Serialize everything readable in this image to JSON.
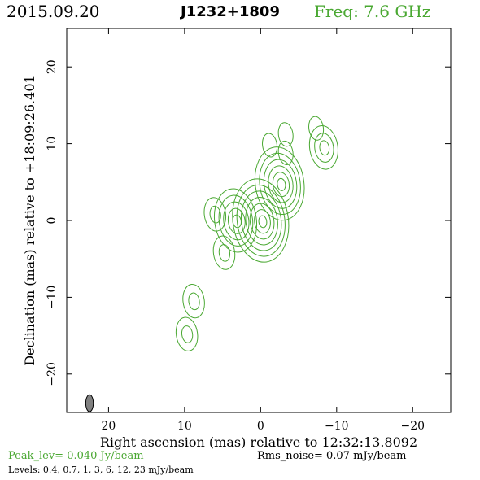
{
  "header": {
    "date": "2015.09.20",
    "source": "J1232+1809",
    "freq": "Freq:  7.6  GHz"
  },
  "footer": {
    "peak": "Peak_lev=  0.040 Jy/beam",
    "rms": "Rms_noise=  0.07  mJy/beam",
    "levels": "Levels: 0.4,  0.7,    1,    3,    6,   12,   23  mJy/beam"
  },
  "colors": {
    "contour": "#4aa832",
    "beam": "#808080",
    "axes": "#000000"
  },
  "chart_data": {
    "type": "contour",
    "xlabel": "Right ascension (mas) relative to 12:32:13.8092",
    "ylabel": "Declination (mas) relative to +18:09:26.401",
    "xlim": [
      25.5,
      -25
    ],
    "ylim": [
      -25,
      25
    ],
    "xticks": [
      20,
      10,
      0,
      -10,
      -20
    ],
    "xtick_labels": [
      "20",
      "10",
      "0",
      "−10",
      "−20"
    ],
    "yticks": [
      20,
      10,
      0,
      -10,
      -20
    ],
    "ytick_labels": [
      "20",
      "10",
      "0",
      "−10",
      "−20"
    ],
    "contour_levels_mJy": [
      0.4,
      0.7,
      1,
      3,
      6,
      12,
      23
    ],
    "peak_Jy_per_beam": 0.04,
    "rms_noise_mJy": 0.07,
    "beam": {
      "x": 22.5,
      "y": -23.8,
      "major_mas": 2.2,
      "minor_mas": 1.0,
      "pa_deg": 0
    },
    "components": [
      {
        "x": 0.0,
        "y": 0.0,
        "levels": 7
      },
      {
        "x": 3.3,
        "y": 0.0,
        "levels": 5
      },
      {
        "x": 6.0,
        "y": 0.8,
        "levels": 2
      },
      {
        "x": 4.8,
        "y": -4.2,
        "levels": 2
      },
      {
        "x": -2.5,
        "y": 4.8,
        "levels": 6
      },
      {
        "x": -3.3,
        "y": 11.2,
        "levels": 1
      },
      {
        "x": -3.3,
        "y": 8.8,
        "levels": 1
      },
      {
        "x": -1.2,
        "y": 9.8,
        "levels": 1
      },
      {
        "x": -8.3,
        "y": 9.5,
        "levels": 3
      },
      {
        "x": -7.3,
        "y": 12.0,
        "levels": 1
      },
      {
        "x": 8.8,
        "y": -10.5,
        "levels": 2
      },
      {
        "x": 9.7,
        "y": -14.8,
        "levels": 2
      }
    ]
  }
}
